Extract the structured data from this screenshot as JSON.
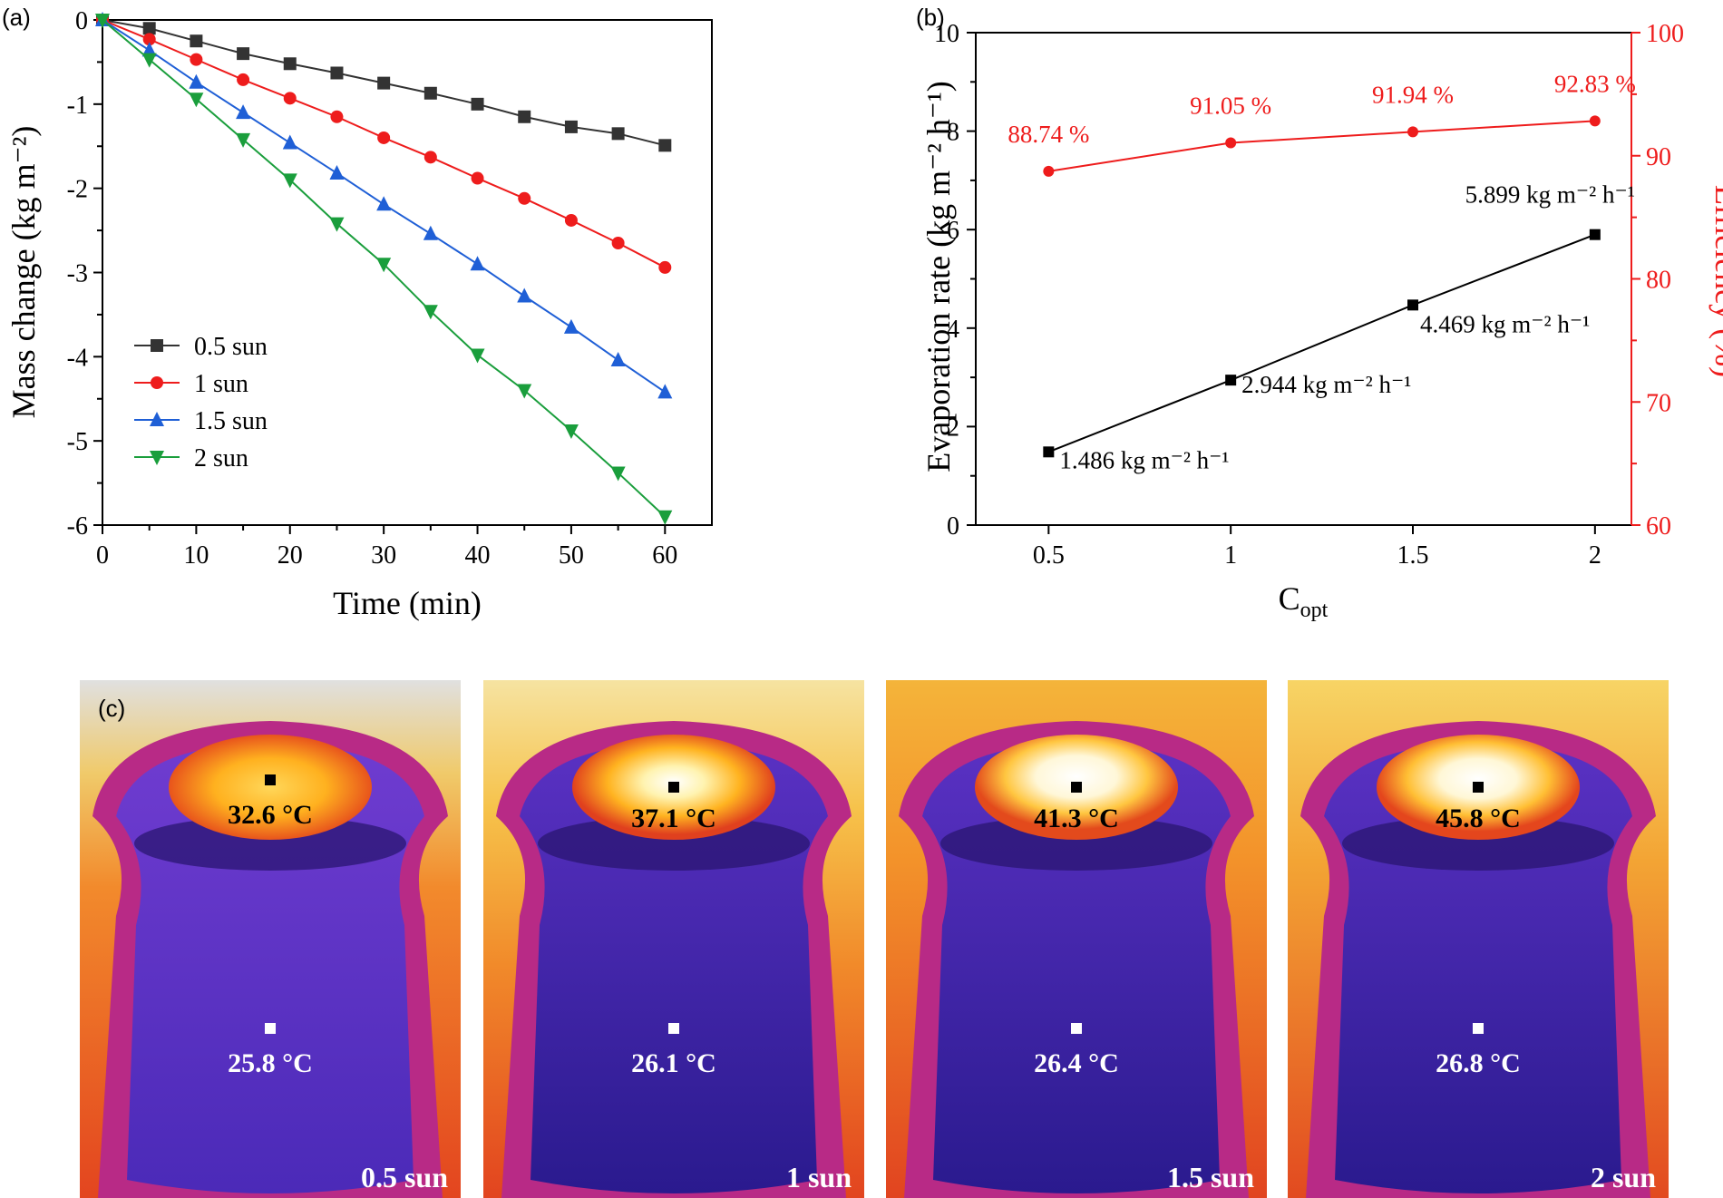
{
  "chart_data": [
    {
      "type": "line",
      "panel_label": "(a)",
      "xlabel": "Time (min)",
      "ylabel": "Mass change (kg m⁻²)",
      "xlim": [
        0,
        65
      ],
      "ylim": [
        -6,
        0
      ],
      "x_ticks": [
        0,
        10,
        20,
        30,
        40,
        50,
        60
      ],
      "y_ticks": [
        0,
        -1,
        -2,
        -3,
        -4,
        -5,
        -6
      ],
      "x": [
        0,
        5,
        10,
        15,
        20,
        25,
        30,
        35,
        40,
        45,
        50,
        55,
        60
      ],
      "series": [
        {
          "name": "0.5 sun",
          "color": "#333333",
          "marker": "square",
          "values": [
            0,
            -0.1,
            -0.25,
            -0.4,
            -0.52,
            -0.63,
            -0.75,
            -0.87,
            -1.0,
            -1.15,
            -1.27,
            -1.35,
            -1.49
          ]
        },
        {
          "name": "1 sun",
          "color": "#ee1c1c",
          "marker": "circle",
          "values": [
            0,
            -0.23,
            -0.47,
            -0.71,
            -0.93,
            -1.15,
            -1.4,
            -1.63,
            -1.88,
            -2.12,
            -2.38,
            -2.65,
            -2.94
          ]
        },
        {
          "name": "1.5 sun",
          "color": "#1f5fd6",
          "marker": "triangle-up",
          "values": [
            0,
            -0.36,
            -0.74,
            -1.1,
            -1.46,
            -1.82,
            -2.19,
            -2.54,
            -2.9,
            -3.28,
            -3.65,
            -4.04,
            -4.42
          ]
        },
        {
          "name": "2 sun",
          "color": "#1a9e3c",
          "marker": "triangle-down",
          "values": [
            0,
            -0.47,
            -0.94,
            -1.42,
            -1.9,
            -2.42,
            -2.9,
            -3.46,
            -3.98,
            -4.4,
            -4.88,
            -5.38,
            -5.9
          ]
        }
      ]
    },
    {
      "type": "line",
      "panel_label": "(b)",
      "xlabel": "C",
      "xlabel_sub": "opt",
      "ylabel": "Evaporation rate (kg m⁻² h⁻¹)",
      "ylabel_right": "Efficiency (%)",
      "categories": [
        "0.5",
        "1",
        "1.5",
        "2"
      ],
      "x": [
        0.5,
        1,
        1.5,
        2
      ],
      "xlim": [
        0.3,
        2.1
      ],
      "ylim": [
        0,
        10
      ],
      "ylim_right": [
        60,
        100
      ],
      "y_ticks": [
        0,
        2,
        4,
        6,
        8,
        10
      ],
      "y_ticks_right": [
        60,
        70,
        80,
        90,
        100
      ],
      "series": [
        {
          "name": "Evaporation rate",
          "axis": "left",
          "color": "#000000",
          "marker": "square",
          "values": [
            1.486,
            2.944,
            4.469,
            5.899
          ],
          "labels": [
            "1.486 kg m⁻² h⁻¹",
            "2.944 kg m⁻² h⁻¹",
            "4.469 kg m⁻² h⁻¹",
            "5.899 kg m⁻² h⁻¹"
          ]
        },
        {
          "name": "Efficiency",
          "axis": "right",
          "color": "#ee1c1c",
          "marker": "circle",
          "values": [
            88.74,
            91.05,
            91.94,
            92.83
          ],
          "labels": [
            "88.74 %",
            "91.05 %",
            "91.94 %",
            "92.83 %"
          ]
        }
      ]
    }
  ],
  "thermal": {
    "panel_label": "(c)",
    "images": [
      {
        "sun": "0.5 sun",
        "top_temp": "32.6 °C",
        "bottom_temp": "25.8 °C"
      },
      {
        "sun": "1 sun",
        "top_temp": "37.1 °C",
        "bottom_temp": "26.1 °C"
      },
      {
        "sun": "1.5 sun",
        "top_temp": "41.3 °C",
        "bottom_temp": "26.4 °C"
      },
      {
        "sun": "2 sun",
        "top_temp": "45.8 °C",
        "bottom_temp": "26.8 °C"
      }
    ]
  }
}
